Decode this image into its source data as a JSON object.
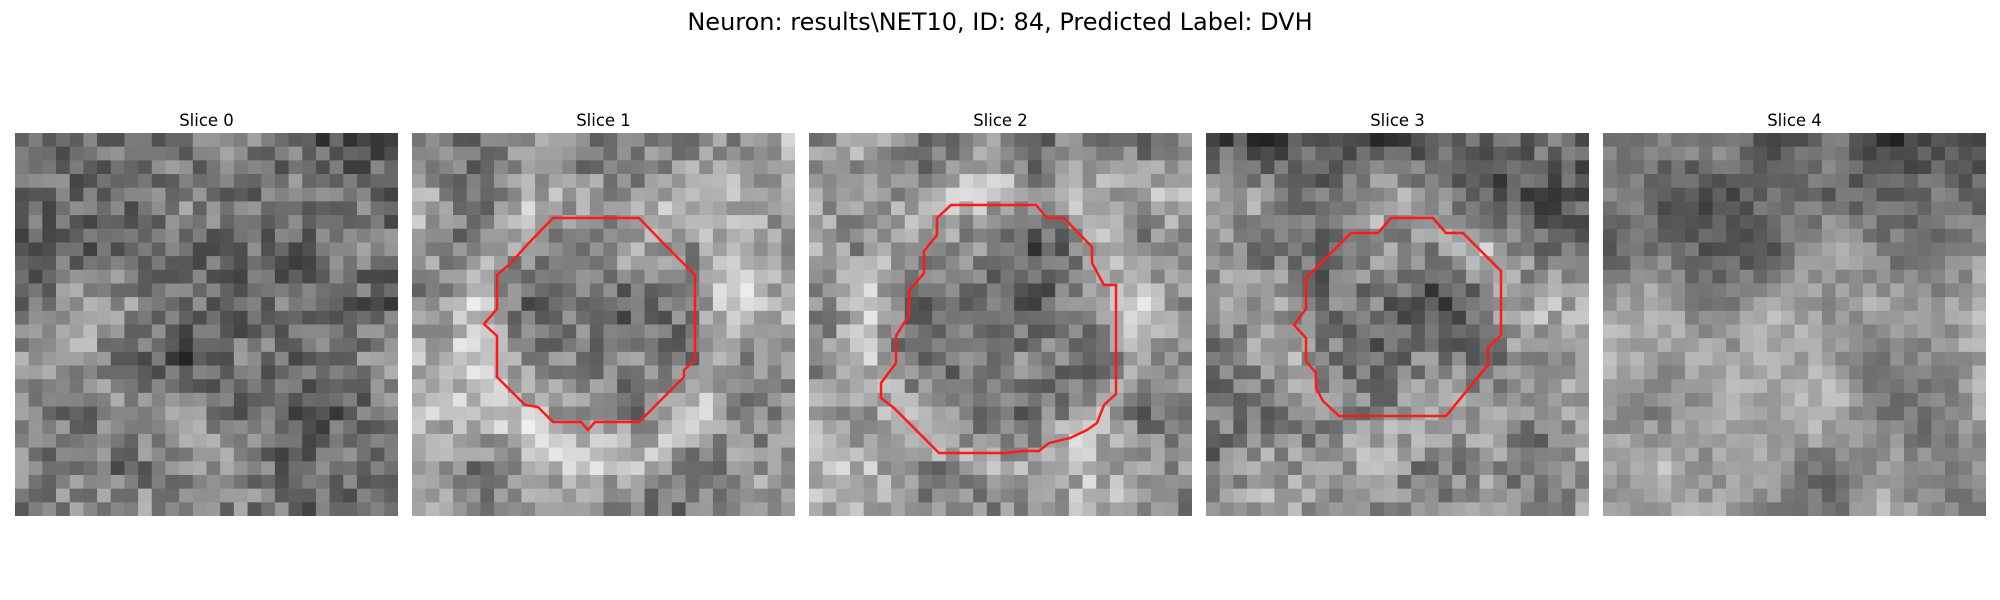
{
  "figure": {
    "title": "Neuron: results\\NET10, ID: 84, Predicted Label: DVH"
  },
  "slices": [
    {
      "title": "Slice 0"
    },
    {
      "title": "Slice 1"
    },
    {
      "title": "Slice 2"
    },
    {
      "title": "Slice 3"
    },
    {
      "title": "Slice 4"
    }
  ],
  "colors": {
    "roi_outline": "#ff1a1a",
    "colormap": "gray"
  }
}
